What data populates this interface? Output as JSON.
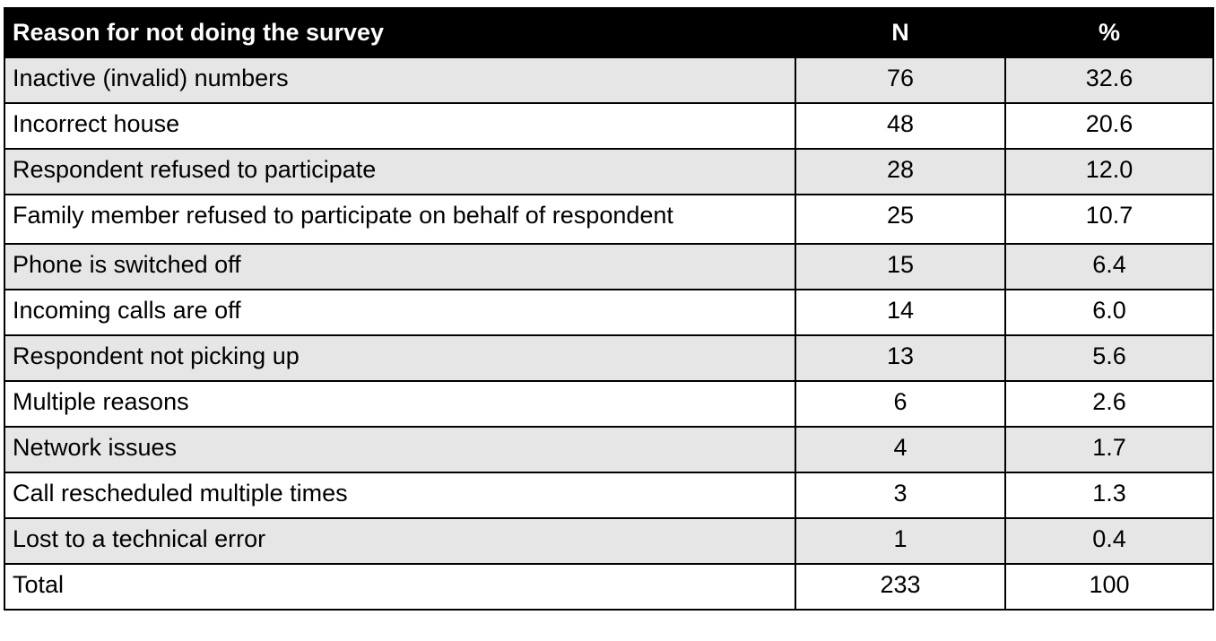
{
  "table": {
    "headers": {
      "reason": "Reason for not doing the survey",
      "n": "N",
      "pct": "%"
    },
    "rows": [
      {
        "reason": "Inactive (invalid) numbers",
        "n": "76",
        "pct": "32.6"
      },
      {
        "reason": "Incorrect house",
        "n": "48",
        "pct": "20.6"
      },
      {
        "reason": "Respondent refused to participate",
        "n": "28",
        "pct": "12.0"
      },
      {
        "reason": "Family member refused to participate on behalf of respondent",
        "n": "25",
        "pct": "10.7"
      },
      {
        "reason": "Phone is switched off",
        "n": "15",
        "pct": "6.4"
      },
      {
        "reason": "Incoming calls are off",
        "n": "14",
        "pct": "6.0"
      },
      {
        "reason": "Respondent not picking up",
        "n": "13",
        "pct": "5.6"
      },
      {
        "reason": "Multiple reasons",
        "n": "6",
        "pct": "2.6"
      },
      {
        "reason": "Network issues",
        "n": "4",
        "pct": "1.7"
      },
      {
        "reason": "Call rescheduled multiple times",
        "n": "3",
        "pct": "1.3"
      },
      {
        "reason": "Lost to a technical error",
        "n": "1",
        "pct": "0.4"
      }
    ],
    "total": {
      "reason": "Total",
      "n": "233",
      "pct": "100"
    },
    "colors": {
      "header_bg": "#000000",
      "header_text": "#ffffff",
      "band_bg": "#e6e6e6",
      "row_bg": "#ffffff"
    }
  }
}
